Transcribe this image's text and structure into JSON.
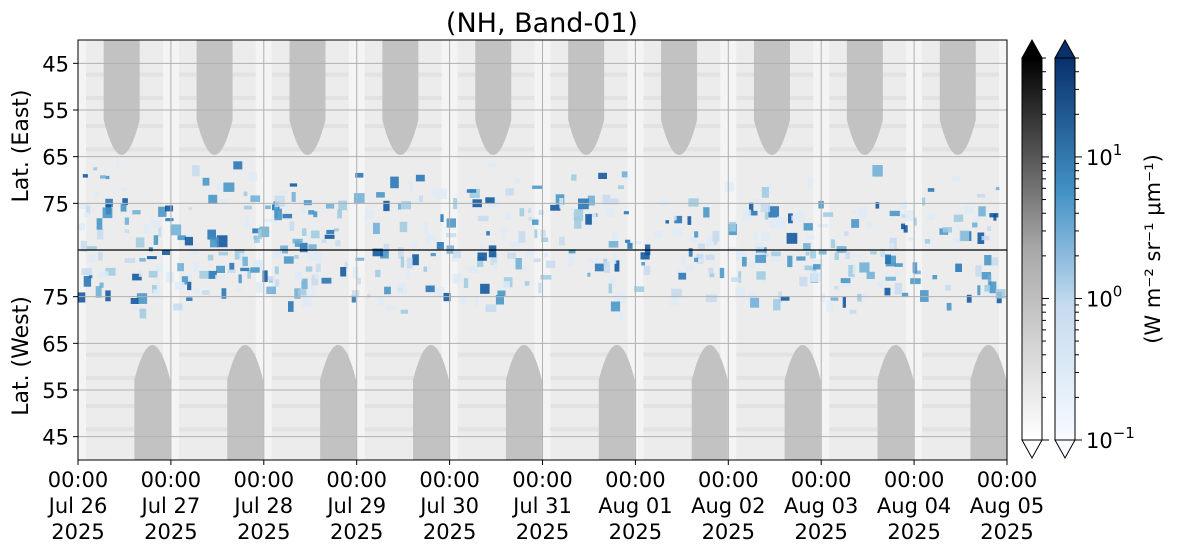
{
  "chart_data": {
    "type": "heatmap",
    "title": "(NH, Band-01)",
    "ylabel_top": "Lat. (East)",
    "ylabel_bottom": "Lat. (West)",
    "y_ticks_top": [
      "45",
      "55",
      "65",
      "75"
    ],
    "y_ticks_bottom": [
      "75",
      "65",
      "55",
      "45"
    ],
    "x_ticks": [
      {
        "time": "00:00",
        "date": "Jul 26",
        "year": "2025"
      },
      {
        "time": "00:00",
        "date": "Jul 27",
        "year": "2025"
      },
      {
        "time": "00:00",
        "date": "Jul 28",
        "year": "2025"
      },
      {
        "time": "00:00",
        "date": "Jul 29",
        "year": "2025"
      },
      {
        "time": "00:00",
        "date": "Jul 30",
        "year": "2025"
      },
      {
        "time": "00:00",
        "date": "Jul 31",
        "year": "2025"
      },
      {
        "time": "00:00",
        "date": "Aug 01",
        "year": "2025"
      },
      {
        "time": "00:00",
        "date": "Aug 02",
        "year": "2025"
      },
      {
        "time": "00:00",
        "date": "Aug 03",
        "year": "2025"
      },
      {
        "time": "00:00",
        "date": "Aug 04",
        "year": "2025"
      },
      {
        "time": "00:00",
        "date": "Aug 05",
        "year": "2025"
      }
    ],
    "x_range": [
      "2025-07-26 00:00",
      "2025-08-05 00:00"
    ],
    "east_lat_range": [
      40,
      85
    ],
    "west_lat_range": [
      85,
      40
    ],
    "grid": true,
    "colorbar_gray": {
      "cmap": "Greys",
      "extend": "both"
    },
    "colorbar_blue": {
      "cmap": "Blues",
      "extend": "both",
      "scale": "log",
      "range": [
        0.1,
        50
      ],
      "tick_labels": [
        {
          "base": "10",
          "exp": "1",
          "value": 10
        },
        {
          "base": "10",
          "exp": "0",
          "value": 1
        },
        {
          "base": "10",
          "exp": "−1",
          "value": 0.1
        }
      ],
      "label": "(W m⁻² sr⁻¹ μm⁻¹)"
    },
    "colors": {
      "blue_dark": "#08306b",
      "blue_mid": "#4292c6",
      "blue_light": "#deebf7",
      "gray_fill": "#c0c0c0",
      "gray_bg": "#ececec"
    }
  }
}
